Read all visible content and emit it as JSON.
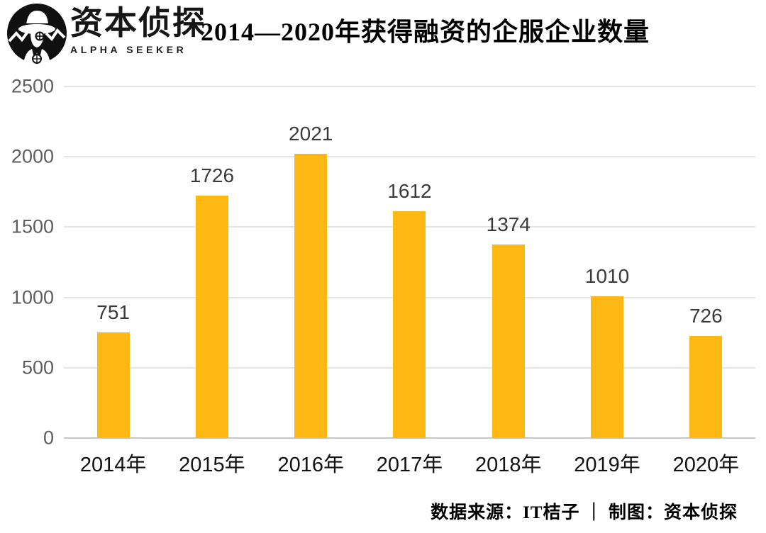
{
  "header": {
    "brand": {
      "name": "资本侦探",
      "subtitle": "ALPHA SEEKER",
      "logo_icon": "detective-logo"
    },
    "title": "2014—2020年获得融资的企服企业数量"
  },
  "chart_data": {
    "type": "bar",
    "title": "2014—2020年获得融资的企服企业数量",
    "categories": [
      "2014年",
      "2015年",
      "2016年",
      "2017年",
      "2018年",
      "2019年",
      "2020年"
    ],
    "values": [
      751,
      1726,
      2021,
      1612,
      1374,
      1010,
      726
    ],
    "xlabel": "",
    "ylabel": "",
    "ylim": [
      0,
      2500
    ],
    "yticks": [
      0,
      500,
      1000,
      1500,
      2000,
      2500
    ],
    "grid": true,
    "legend": "none",
    "bar_color": "#FDB813",
    "grid_color": "#e4e4e4",
    "value_label_color": "#3a3a3a",
    "tick_label_color": "#5e5e5e"
  },
  "footer": {
    "source_text": "数据来源：IT桔子 ｜ 制图：资本侦探"
  }
}
